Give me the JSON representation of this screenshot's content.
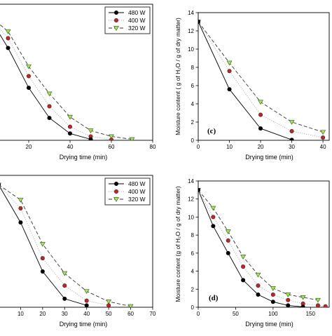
{
  "chart_data": [
    {
      "id": "tl",
      "type": "line",
      "panel_label": "",
      "xlabel": "Drying time (min)",
      "ylabel": "",
      "xlim": [
        0,
        80
      ],
      "ylim": [
        0,
        14
      ],
      "xticks": [
        20,
        40,
        60,
        80
      ],
      "xtick_labels": [
        "20",
        "40",
        "60",
        "80"
      ],
      "yticks": [],
      "legend": true,
      "series": [
        {
          "name": "480 W",
          "x": [
            0,
            10,
            20,
            30,
            40,
            50
          ],
          "y": [
            13,
            9.5,
            5.4,
            2.3,
            0.7,
            0.1
          ]
        },
        {
          "name": "400 W",
          "x": [
            0,
            10,
            20,
            30,
            40,
            50,
            60
          ],
          "y": [
            13,
            10.5,
            6.6,
            3.5,
            1.4,
            0.4,
            0.05
          ]
        },
        {
          "name": "320 W",
          "x": [
            0,
            10,
            20,
            30,
            40,
            50,
            60,
            70
          ],
          "y": [
            13,
            11.2,
            7.6,
            4.8,
            2.4,
            1.0,
            0.4,
            0.1
          ]
        }
      ]
    },
    {
      "id": "tr",
      "type": "line",
      "panel_label": "(c)",
      "xlabel": "Drying time (min)",
      "ylabel": "Moisture content ( g of H₂O / g of dry matter)",
      "xlim": [
        0,
        42
      ],
      "ylim": [
        0,
        14
      ],
      "xticks": [
        0,
        10,
        20,
        30,
        40
      ],
      "xtick_labels": [
        "0",
        "10",
        "20",
        "30",
        "40"
      ],
      "yticks": [
        0,
        2,
        4,
        6,
        8,
        10,
        12,
        14
      ],
      "legend": false,
      "series": [
        {
          "name": "480 W",
          "x": [
            0,
            10,
            20,
            30
          ],
          "y": [
            13,
            5.6,
            1.3,
            0.05
          ]
        },
        {
          "name": "400 W",
          "x": [
            0,
            10,
            20,
            30,
            40
          ],
          "y": [
            13,
            7.6,
            2.8,
            1.0,
            0.3
          ]
        },
        {
          "name": "320 W",
          "x": [
            0,
            10,
            20,
            30,
            40
          ],
          "y": [
            13,
            8.5,
            4.2,
            2.0,
            0.9
          ]
        }
      ]
    },
    {
      "id": "bl",
      "type": "line",
      "panel_label": "",
      "xlabel": "Drying time (min)",
      "ylabel": "",
      "xlim": [
        0,
        70
      ],
      "ylim": [
        0,
        14
      ],
      "xticks": [
        10,
        20,
        30,
        40,
        50,
        60,
        70
      ],
      "xtick_labels": [
        "10",
        "20",
        "30",
        "40",
        "50",
        "60",
        "70"
      ],
      "yticks": [],
      "legend": true,
      "series": [
        {
          "name": "480 W",
          "x": [
            0,
            10,
            20,
            30,
            40
          ],
          "y": [
            13,
            9.0,
            3.8,
            0.9,
            0.2
          ]
        },
        {
          "name": "400 W",
          "x": [
            0,
            10,
            20,
            30,
            40,
            50
          ],
          "y": [
            13,
            10.5,
            5.2,
            2.3,
            0.7,
            0.2
          ]
        },
        {
          "name": "320 W",
          "x": [
            0,
            10,
            20,
            30,
            40,
            50,
            60
          ],
          "y": [
            13,
            11.4,
            6.7,
            3.6,
            1.7,
            0.6,
            0.1
          ]
        }
      ]
    },
    {
      "id": "br",
      "type": "line",
      "panel_label": "(d)",
      "xlabel": "Drying time (min)",
      "ylabel": "Moisture content (g of H₂O / g of dry matter)",
      "xlim": [
        0,
        175
      ],
      "ylim": [
        0,
        14
      ],
      "xticks": [
        0,
        50,
        100,
        150
      ],
      "xtick_labels": [
        "0",
        "50",
        "100",
        "150"
      ],
      "yticks": [
        0,
        2,
        4,
        6,
        8,
        10,
        12,
        14
      ],
      "legend": false,
      "series": [
        {
          "name": "480 W",
          "x": [
            0,
            20,
            40,
            60,
            80,
            100,
            120,
            140
          ],
          "y": [
            13,
            9.0,
            6.0,
            3.0,
            1.4,
            0.6,
            0.2,
            0.05
          ]
        },
        {
          "name": "400 W",
          "x": [
            0,
            20,
            40,
            60,
            80,
            100,
            120,
            140,
            160,
            170
          ],
          "y": [
            13,
            10.0,
            7.4,
            4.5,
            2.4,
            1.4,
            0.8,
            0.4,
            0.2,
            0.1
          ]
        },
        {
          "name": "320 W",
          "x": [
            0,
            20,
            40,
            60,
            80,
            100,
            120,
            140,
            160
          ],
          "y": [
            13,
            11.0,
            8.4,
            5.6,
            3.6,
            2.1,
            1.4,
            1.1,
            0.8
          ]
        }
      ]
    }
  ],
  "legend_entries": [
    "480 W",
    "400 W",
    "320 W"
  ],
  "series_colors": {
    "480 W": "#000000",
    "400 W": "#b82a2a",
    "320 W": "#a7e35a"
  }
}
